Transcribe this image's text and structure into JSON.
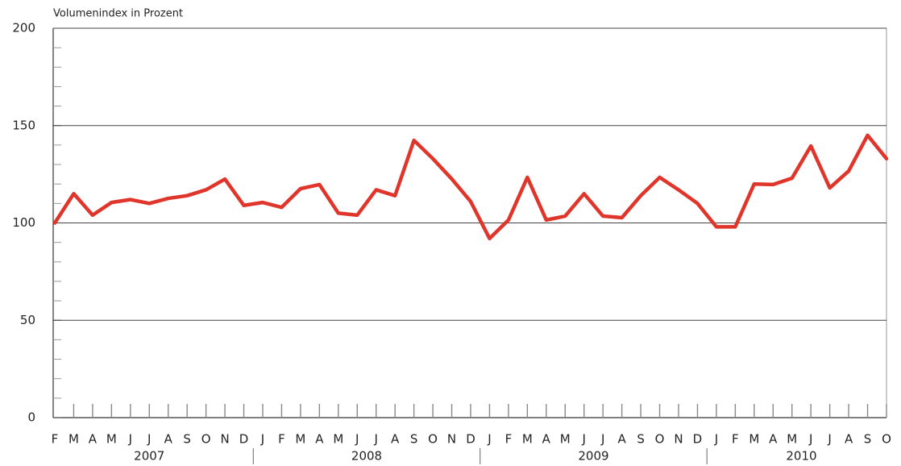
{
  "chart_data": {
    "type": "line",
    "y_axis_label": "Volumenindex in Prozent",
    "categories": [
      "F",
      "M",
      "A",
      "M",
      "J",
      "J",
      "A",
      "S",
      "O",
      "N",
      "D",
      "J",
      "F",
      "M",
      "A",
      "M",
      "J",
      "J",
      "A",
      "S",
      "O",
      "N",
      "D",
      "J",
      "F",
      "M",
      "A",
      "M",
      "J",
      "J",
      "A",
      "S",
      "O",
      "N",
      "D",
      "J",
      "F",
      "M",
      "A",
      "M",
      "J",
      "J",
      "A",
      "S",
      "O"
    ],
    "year_groups": [
      {
        "label": "2007",
        "start": 0,
        "end": 10
      },
      {
        "label": "2008",
        "start": 11,
        "end": 22
      },
      {
        "label": "2009",
        "start": 23,
        "end": 34
      },
      {
        "label": "2010",
        "start": 35,
        "end": 44
      }
    ],
    "series": [
      {
        "name": "Volumenindex",
        "color": "#e0352b",
        "values": [
          100,
          115,
          104,
          110.5,
          112,
          110,
          112.6,
          114,
          117,
          122.5,
          109,
          110.5,
          108,
          117.6,
          119.7,
          105,
          104,
          117,
          114,
          142.4,
          133,
          122.6,
          111,
          92,
          101.5,
          123.4,
          101.5,
          103.5,
          115,
          103.5,
          102.7,
          114,
          123.4,
          117,
          110,
          98,
          98,
          120,
          119.7,
          123,
          139.5,
          118,
          126.7,
          145,
          133
        ]
      }
    ],
    "ylim": [
      0,
      200
    ],
    "yticks": [
      0,
      50,
      100,
      150,
      200
    ],
    "minor_yticks": [
      10,
      20,
      30,
      40,
      60,
      70,
      80,
      90,
      110,
      120,
      130,
      140,
      160,
      170,
      180,
      190
    ],
    "grid": true
  }
}
